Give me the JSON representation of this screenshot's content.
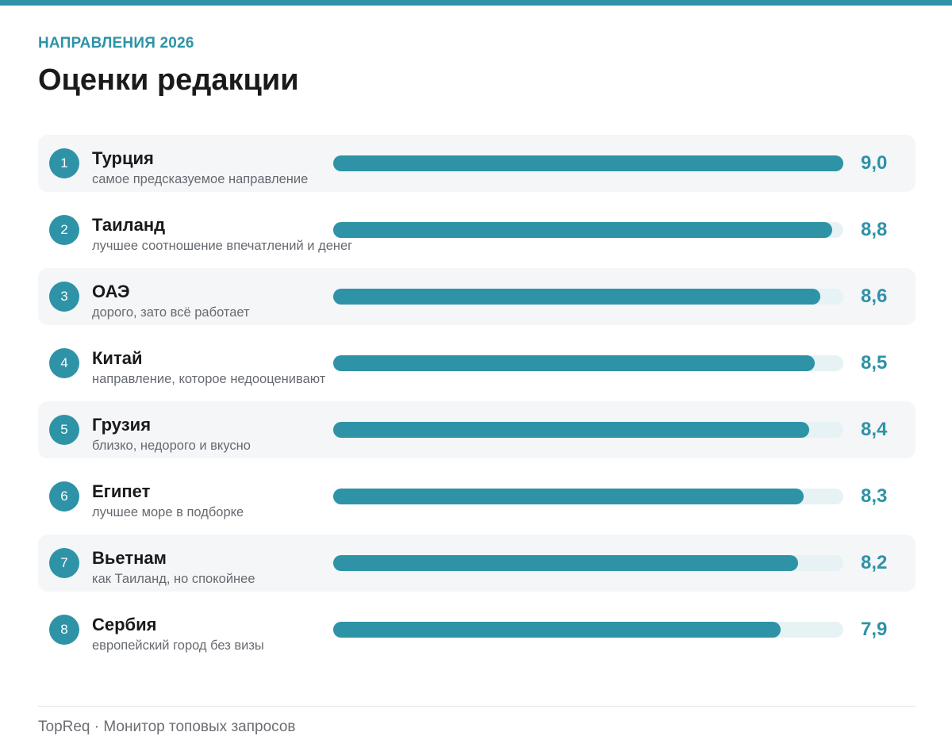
{
  "colors": {
    "accent": "#2e93a7",
    "track": "#e6f2f4",
    "row_shade": "#f5f6f8",
    "title": "#1a1a1a",
    "muted": "#666a70"
  },
  "header": {
    "kicker": "НАПРАВЛЕНИЯ 2026",
    "title": "Оценки редакции"
  },
  "footer": {
    "brand": "TopReq",
    "separator": "·",
    "tagline": "Монитор топовых запросов"
  },
  "chart_data": {
    "type": "bar",
    "orientation": "horizontal",
    "xlim": [
      0,
      9.0
    ],
    "rows": [
      {
        "rank": "1",
        "name": "Турция",
        "note": "самое предсказуемое направление",
        "value": 9.0,
        "label": "9,0"
      },
      {
        "rank": "2",
        "name": "Таиланд",
        "note": "лучшее соотношение впечатлений и денег",
        "value": 8.8,
        "label": "8,8"
      },
      {
        "rank": "3",
        "name": "ОАЭ",
        "note": "дорого, зато всё работает",
        "value": 8.6,
        "label": "8,6"
      },
      {
        "rank": "4",
        "name": "Китай",
        "note": "направление, которое недооценивают",
        "value": 8.5,
        "label": "8,5"
      },
      {
        "rank": "5",
        "name": "Грузия",
        "note": "близко, недорого и вкусно",
        "value": 8.4,
        "label": "8,4"
      },
      {
        "rank": "6",
        "name": "Египет",
        "note": "лучшее море в подборке",
        "value": 8.3,
        "label": "8,3"
      },
      {
        "rank": "7",
        "name": "Вьетнам",
        "note": "как Таиланд, но спокойнее",
        "value": 8.2,
        "label": "8,2"
      },
      {
        "rank": "8",
        "name": "Сербия",
        "note": "европейский город без визы",
        "value": 7.9,
        "label": "7,9"
      }
    ]
  }
}
